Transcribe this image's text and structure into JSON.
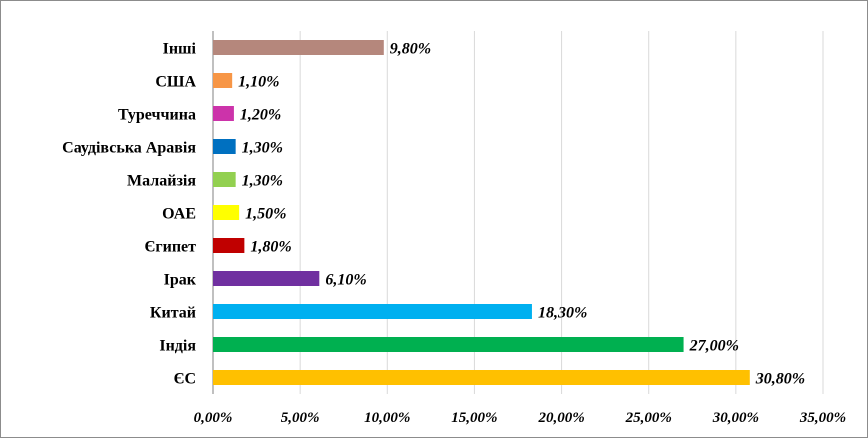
{
  "chart_data": {
    "type": "bar",
    "orientation": "horizontal",
    "categories": [
      "ЄС",
      "Індія",
      "Китай",
      "Ірак",
      "Єгипет",
      "ОАЕ",
      "Малайзія",
      "Саудівська Аравія",
      "Туреччина",
      "США",
      "Інші"
    ],
    "values": [
      30.8,
      27.0,
      18.3,
      6.1,
      1.8,
      1.5,
      1.3,
      1.3,
      1.2,
      1.1,
      9.8
    ],
    "value_labels": [
      "30,80%",
      "27,00%",
      "18,30%",
      "6,10%",
      "1,80%",
      "1,50%",
      "1,30%",
      "1,30%",
      "1,20%",
      "1,10%",
      "9,80%"
    ],
    "colors": [
      "#ffc000",
      "#00b050",
      "#00b0f0",
      "#7030a0",
      "#c00000",
      "#ffff00",
      "#92d050",
      "#0070c0",
      "#cc33aa",
      "#f79646",
      "#b5877c"
    ],
    "x_ticks": [
      "0,00%",
      "5,00%",
      "10,00%",
      "15,00%",
      "20,00%",
      "25,00%",
      "30,00%",
      "35,00%"
    ],
    "xlim": [
      0,
      35
    ],
    "grid": "vertical",
    "legend": "none",
    "title": "",
    "xlabel": "",
    "ylabel": ""
  }
}
